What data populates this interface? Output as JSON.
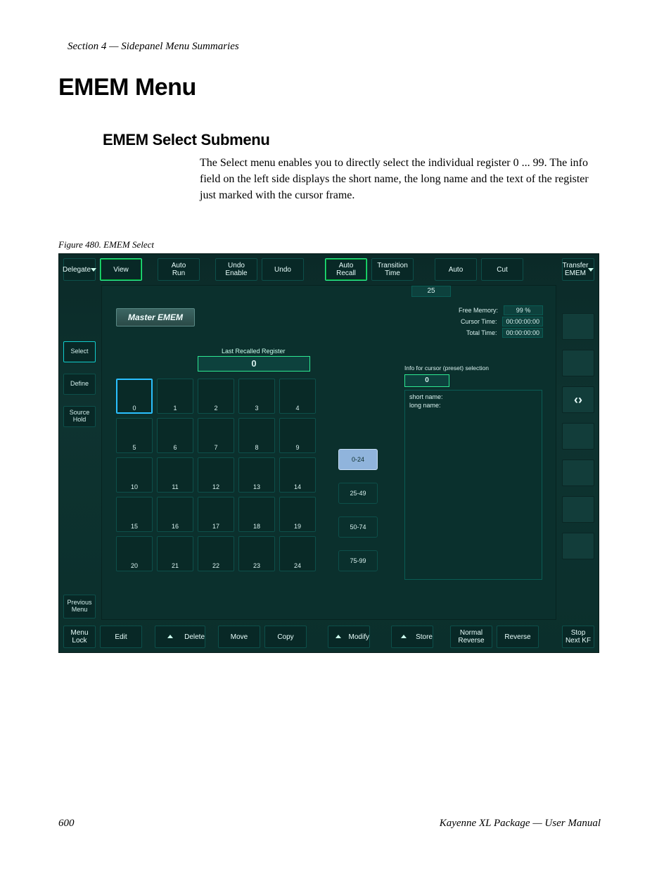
{
  "page": {
    "section_header": "Section 4 — Sidepanel Menu Summaries",
    "h1": "EMEM Menu",
    "h2": "EMEM Select Submenu",
    "body": "The Select menu enables you to directly select the individual register 0 ... 99. The info field on the left side displays the short name, the long name and the text of the register just marked with the cursor frame.",
    "fig_caption": "Figure 480.  EMEM Select",
    "footer_num": "600",
    "footer_title": "Kayenne XL Package — User Manual"
  },
  "top": {
    "delegate": "Delegate",
    "view": "View",
    "auto_run": "Auto\nRun",
    "undo_enable": "Undo\nEnable",
    "undo": "Undo",
    "auto_recall": "Auto\nRecall",
    "transition_time": "Transition\nTime",
    "auto": "Auto",
    "cut": "Cut",
    "transfer_emem": "Transfer\nEMEM"
  },
  "left": {
    "select": "Select",
    "define": "Define",
    "source_hold": "Source\nHold",
    "previous_menu": "Previous\nMenu",
    "menu_lock": "Menu\nLock"
  },
  "bottom": {
    "edit": "Edit",
    "delete": "Delete",
    "move": "Move",
    "copy": "Copy",
    "modify": "Modify",
    "store": "Store",
    "normal_reverse": "Normal\nReverse",
    "reverse": "Reverse",
    "stop_next_kf": "Stop\nNext KF"
  },
  "main": {
    "master_label": "Master EMEM",
    "last_recalled_label": "Last Recalled Register",
    "last_recalled_value": "0",
    "val25": "25",
    "info": {
      "free_mem_label": "Free Memory:",
      "free_mem_val": "99 %",
      "cursor_time_label": "Cursor Time:",
      "cursor_time_val": "00:00:00:00",
      "total_time_label": "Total Time:",
      "total_time_val": "00:00:00:00"
    },
    "sel_info_label": "Info for cursor (preset) selection",
    "sel_info_val": "0",
    "short_name_label": "short name:",
    "long_name_label": "long  name:",
    "registers": [
      "0",
      "1",
      "2",
      "3",
      "4",
      "5",
      "6",
      "7",
      "8",
      "9",
      "10",
      "11",
      "12",
      "13",
      "14",
      "15",
      "16",
      "17",
      "18",
      "19",
      "20",
      "21",
      "22",
      "23",
      "24"
    ],
    "selected_register_index": 0,
    "ranges": [
      "0-24",
      "25-49",
      "50-74",
      "75-99"
    ],
    "active_range_index": 0
  },
  "colors": {
    "bg": "#0e3330",
    "panel": "#0b302d",
    "border": "#0d4f4a",
    "accent_green": "#2de892",
    "accent_blue": "#2ac0ff",
    "range_active_bg": "#90b4dc"
  }
}
